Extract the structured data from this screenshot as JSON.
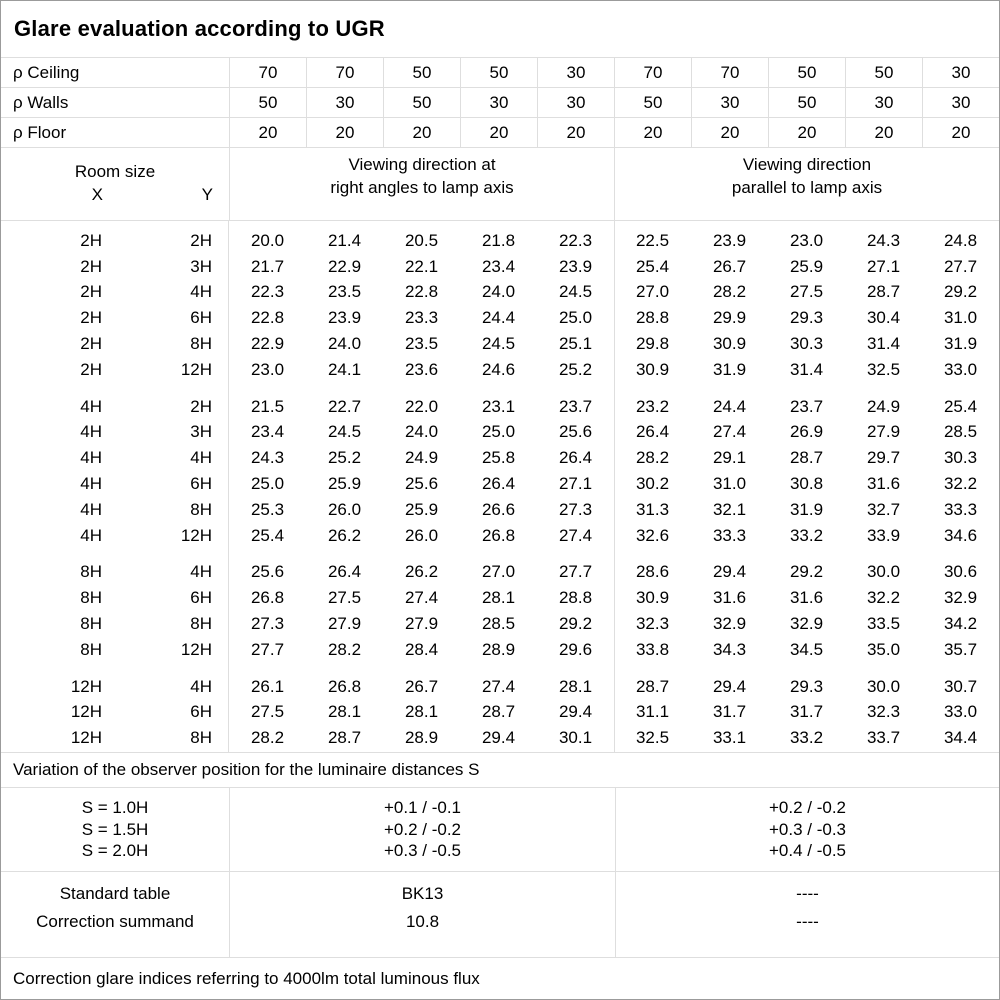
{
  "title": "Glare evaluation according to UGR",
  "reflectance_rows": [
    {
      "label": "ρ Ceiling",
      "values": [
        "70",
        "70",
        "50",
        "50",
        "30",
        "70",
        "70",
        "50",
        "50",
        "30"
      ]
    },
    {
      "label": "ρ Walls",
      "values": [
        "50",
        "30",
        "50",
        "30",
        "30",
        "50",
        "30",
        "50",
        "30",
        "30"
      ]
    },
    {
      "label": "ρ Floor",
      "values": [
        "20",
        "20",
        "20",
        "20",
        "20",
        "20",
        "20",
        "20",
        "20",
        "20"
      ]
    }
  ],
  "header": {
    "room_size": "Room size",
    "x": "X",
    "y": "Y",
    "group1_lines": [
      "Viewing direction at",
      "right angles to lamp axis"
    ],
    "group2_lines": [
      "Viewing direction",
      "parallel to lamp axis"
    ]
  },
  "ugr_blocks": [
    {
      "rows": [
        {
          "x": "2H",
          "y": "2H",
          "values": [
            "20.0",
            "21.4",
            "20.5",
            "21.8",
            "22.3",
            "22.5",
            "23.9",
            "23.0",
            "24.3",
            "24.8"
          ]
        },
        {
          "x": "2H",
          "y": "3H",
          "values": [
            "21.7",
            "22.9",
            "22.1",
            "23.4",
            "23.9",
            "25.4",
            "26.7",
            "25.9",
            "27.1",
            "27.7"
          ]
        },
        {
          "x": "2H",
          "y": "4H",
          "values": [
            "22.3",
            "23.5",
            "22.8",
            "24.0",
            "24.5",
            "27.0",
            "28.2",
            "27.5",
            "28.7",
            "29.2"
          ]
        },
        {
          "x": "2H",
          "y": "6H",
          "values": [
            "22.8",
            "23.9",
            "23.3",
            "24.4",
            "25.0",
            "28.8",
            "29.9",
            "29.3",
            "30.4",
            "31.0"
          ]
        },
        {
          "x": "2H",
          "y": "8H",
          "values": [
            "22.9",
            "24.0",
            "23.5",
            "24.5",
            "25.1",
            "29.8",
            "30.9",
            "30.3",
            "31.4",
            "31.9"
          ]
        },
        {
          "x": "2H",
          "y": "12H",
          "values": [
            "23.0",
            "24.1",
            "23.6",
            "24.6",
            "25.2",
            "30.9",
            "31.9",
            "31.4",
            "32.5",
            "33.0"
          ]
        }
      ]
    },
    {
      "rows": [
        {
          "x": "4H",
          "y": "2H",
          "values": [
            "21.5",
            "22.7",
            "22.0",
            "23.1",
            "23.7",
            "23.2",
            "24.4",
            "23.7",
            "24.9",
            "25.4"
          ]
        },
        {
          "x": "4H",
          "y": "3H",
          "values": [
            "23.4",
            "24.5",
            "24.0",
            "25.0",
            "25.6",
            "26.4",
            "27.4",
            "26.9",
            "27.9",
            "28.5"
          ]
        },
        {
          "x": "4H",
          "y": "4H",
          "values": [
            "24.3",
            "25.2",
            "24.9",
            "25.8",
            "26.4",
            "28.2",
            "29.1",
            "28.7",
            "29.7",
            "30.3"
          ]
        },
        {
          "x": "4H",
          "y": "6H",
          "values": [
            "25.0",
            "25.9",
            "25.6",
            "26.4",
            "27.1",
            "30.2",
            "31.0",
            "30.8",
            "31.6",
            "32.2"
          ]
        },
        {
          "x": "4H",
          "y": "8H",
          "values": [
            "25.3",
            "26.0",
            "25.9",
            "26.6",
            "27.3",
            "31.3",
            "32.1",
            "31.9",
            "32.7",
            "33.3"
          ]
        },
        {
          "x": "4H",
          "y": "12H",
          "values": [
            "25.4",
            "26.2",
            "26.0",
            "26.8",
            "27.4",
            "32.6",
            "33.3",
            "33.2",
            "33.9",
            "34.6"
          ]
        }
      ]
    },
    {
      "rows": [
        {
          "x": "8H",
          "y": "4H",
          "values": [
            "25.6",
            "26.4",
            "26.2",
            "27.0",
            "27.7",
            "28.6",
            "29.4",
            "29.2",
            "30.0",
            "30.6"
          ]
        },
        {
          "x": "8H",
          "y": "6H",
          "values": [
            "26.8",
            "27.5",
            "27.4",
            "28.1",
            "28.8",
            "30.9",
            "31.6",
            "31.6",
            "32.2",
            "32.9"
          ]
        },
        {
          "x": "8H",
          "y": "8H",
          "values": [
            "27.3",
            "27.9",
            "27.9",
            "28.5",
            "29.2",
            "32.3",
            "32.9",
            "32.9",
            "33.5",
            "34.2"
          ]
        },
        {
          "x": "8H",
          "y": "12H",
          "values": [
            "27.7",
            "28.2",
            "28.4",
            "28.9",
            "29.6",
            "33.8",
            "34.3",
            "34.5",
            "35.0",
            "35.7"
          ]
        }
      ]
    },
    {
      "rows": [
        {
          "x": "12H",
          "y": "4H",
          "values": [
            "26.1",
            "26.8",
            "26.7",
            "27.4",
            "28.1",
            "28.7",
            "29.4",
            "29.3",
            "30.0",
            "30.7"
          ]
        },
        {
          "x": "12H",
          "y": "6H",
          "values": [
            "27.5",
            "28.1",
            "28.1",
            "28.7",
            "29.4",
            "31.1",
            "31.7",
            "31.7",
            "32.3",
            "33.0"
          ]
        },
        {
          "x": "12H",
          "y": "8H",
          "values": [
            "28.2",
            "28.7",
            "28.9",
            "29.4",
            "30.1",
            "32.5",
            "33.1",
            "33.2",
            "33.7",
            "34.4"
          ]
        }
      ]
    }
  ],
  "variation_note": "Variation of the observer position for the luminaire distances S",
  "s_rows": [
    {
      "label": "S = 1.0H",
      "group1": "+0.1 / -0.1",
      "group2": "+0.2 / -0.2"
    },
    {
      "label": "S = 1.5H",
      "group1": "+0.2 / -0.2",
      "group2": "+0.3 / -0.3"
    },
    {
      "label": "S = 2.0H",
      "group1": "+0.3 / -0.5",
      "group2": "+0.4 / -0.5"
    }
  ],
  "summary_rows": [
    {
      "label": "Standard table",
      "group1": "BK13",
      "group2": "----"
    },
    {
      "label": "Correction summand",
      "group1": "10.8",
      "group2": "----"
    }
  ],
  "footer_note": "Correction glare indices referring to 4000lm total luminous flux"
}
